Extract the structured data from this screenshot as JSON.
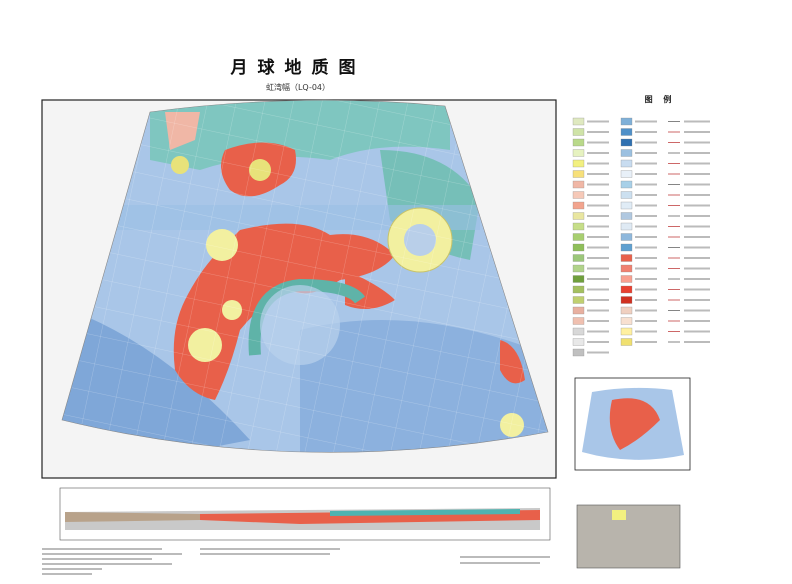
{
  "header": {
    "title": "月球地质图",
    "subtitle": "虹湾幅（LQ-04）"
  },
  "legend": {
    "title": "图  例"
  }
}
